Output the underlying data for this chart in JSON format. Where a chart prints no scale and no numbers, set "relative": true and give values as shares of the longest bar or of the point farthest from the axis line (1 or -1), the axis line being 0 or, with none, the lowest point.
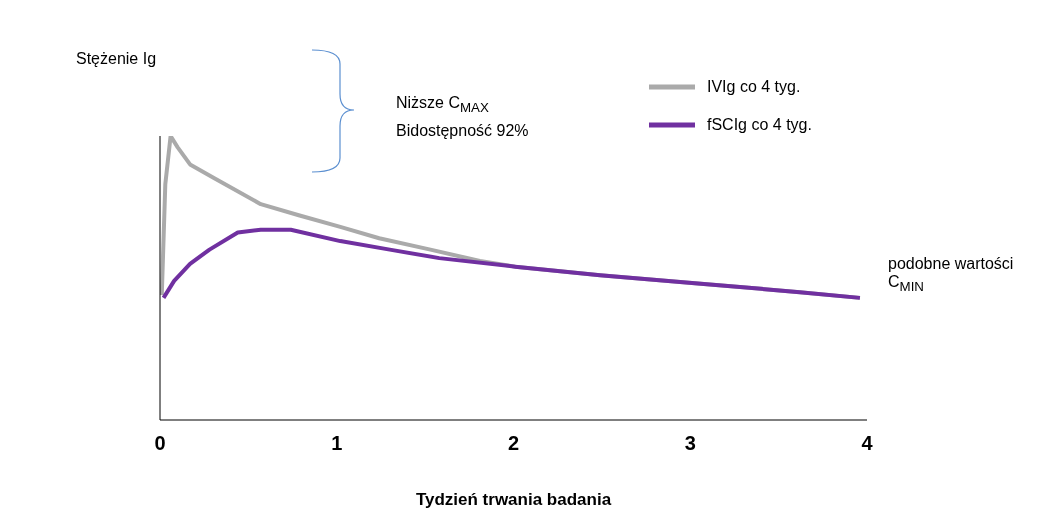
{
  "chart_data": {
    "type": "line",
    "relative": true,
    "xlabel": "Tydzień trwania badania",
    "ylabel": "Stężenie Ig",
    "xlim": [
      0,
      4
    ],
    "xticks": [
      0,
      1,
      2,
      3,
      4
    ],
    "legend": "top right",
    "grid": false,
    "marker": "none",
    "line_style": "solid",
    "annotations": [
      "Niższe C$_{MAX}$",
      "Bidostępność 92%",
      "podobne wartości C$_{MIN}$"
    ],
    "series": [
      {
        "name": "IVIg co 4 tyg.",
        "color": "#aaaaaa",
        "x": [
          0.01,
          0.03,
          0.06,
          0.1,
          0.17,
          0.31,
          0.57,
          0.79,
          1.02,
          1.24,
          1.53,
          1.81,
          2.01,
          2.49,
          3.06,
          3.62,
          3.96
        ],
        "values": [
          0.44,
          0.83,
          1,
          0.96,
          0.9,
          0.85,
          0.76,
          0.72,
          0.68,
          0.64,
          0.6,
          0.56,
          0.54,
          0.51,
          0.48,
          0.45,
          0.43
        ]
      },
      {
        "name": "fSCIg co 4 tyg.",
        "color": "#7030a0",
        "x": [
          0.02,
          0.08,
          0.17,
          0.28,
          0.44,
          0.57,
          0.74,
          1.02,
          1.3,
          1.58,
          2.01,
          2.49,
          3.06,
          3.62,
          3.96
        ],
        "values": [
          0.43,
          0.49,
          0.55,
          0.6,
          0.66,
          0.67,
          0.67,
          0.63,
          0.6,
          0.57,
          0.54,
          0.51,
          0.48,
          0.45,
          0.43
        ]
      }
    ]
  }
}
